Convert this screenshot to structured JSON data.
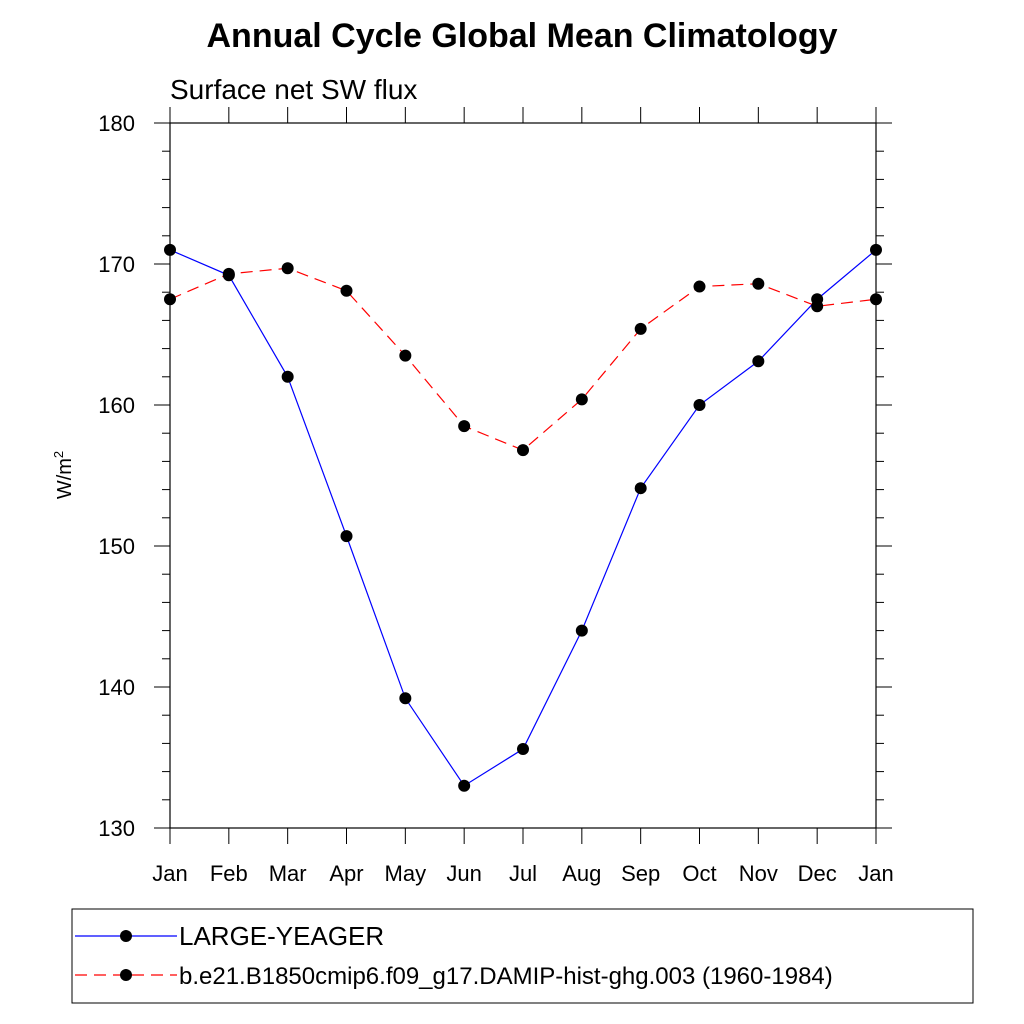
{
  "chart_data": {
    "type": "line",
    "title": "Annual Cycle Global Mean Climatology",
    "subtitle": "Surface net SW flux",
    "ylabel": "W/m",
    "ylabel_sup": "2",
    "xlabel": "",
    "categories": [
      "Jan",
      "Feb",
      "Mar",
      "Apr",
      "May",
      "Jun",
      "Jul",
      "Aug",
      "Sep",
      "Oct",
      "Nov",
      "Dec",
      "Jan"
    ],
    "ylim": [
      130,
      180
    ],
    "yticks": [
      "130",
      "140",
      "150",
      "160",
      "170",
      "180"
    ],
    "series": [
      {
        "name": "LARGE-YEAGER",
        "color": "#0000ff",
        "dash": "solid",
        "values": [
          171.0,
          169.2,
          162.0,
          150.7,
          139.2,
          133.0,
          135.6,
          144.0,
          154.1,
          160.0,
          163.1,
          167.5,
          171.0
        ]
      },
      {
        "name": "b.e21.B1850cmip6.f09_g17.DAMIP-hist-ghg.003 (1960-1984)",
        "color": "#ff0000",
        "dash": "dashed",
        "values": [
          167.5,
          169.3,
          169.7,
          168.1,
          163.5,
          158.5,
          156.8,
          160.4,
          165.4,
          168.4,
          168.6,
          167.0,
          167.5
        ]
      }
    ],
    "grid": false,
    "legend_position": "bottom"
  }
}
